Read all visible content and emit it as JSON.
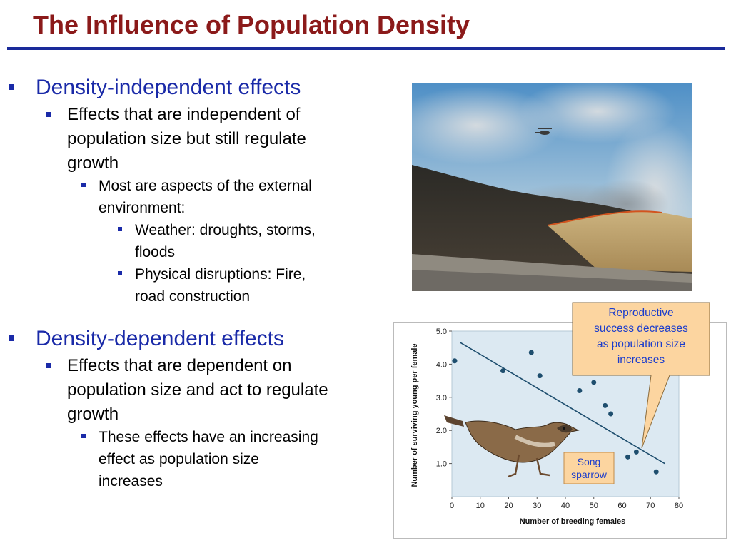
{
  "slide": {
    "title": "The Influence of Population Density"
  },
  "bullets": {
    "independent": {
      "heading": "Density-independent effects",
      "sub_line1": "Effects that are independent of",
      "sub_line2": "population size but still regulate",
      "sub_line3": "growth",
      "env_line1": "Most are aspects of the external",
      "env_line2": "environment:",
      "weather_line1": "Weather: droughts, storms,",
      "weather_line2": "floods",
      "physical_line1": "Physical disruptions: Fire,",
      "physical_line2": "road construction"
    },
    "dependent": {
      "heading": "Density-dependent effects",
      "sub_line1": "Effects that are dependent on",
      "sub_line2": "population size and act to regulate",
      "sub_line3": "growth",
      "inc_line1": "These effects have an increasing",
      "inc_line2": "effect as population size",
      "inc_line3": "increases"
    }
  },
  "photo": {
    "subject": "hillside-wildfire-with-helicopter"
  },
  "callouts": {
    "repro_line1": "Reproductive",
    "repro_line2": "success decreases",
    "repro_line3": "as population size",
    "repro_line4": "increases",
    "song_line1": "Song",
    "song_line2": "sparrow"
  },
  "chart_data": {
    "type": "scatter",
    "xlabel": "Number of breeding females",
    "ylabel": "Number of surviving young per female",
    "xlim": [
      0,
      80
    ],
    "ylim": [
      0,
      5
    ],
    "x_ticks": [
      "0",
      "10",
      "20",
      "30",
      "40",
      "50",
      "60",
      "70",
      "80"
    ],
    "y_ticks": [
      "1.0",
      "2.0",
      "3.0",
      "4.0",
      "5.0"
    ],
    "points": [
      {
        "x": 1,
        "y": 4.1
      },
      {
        "x": 18,
        "y": 3.8
      },
      {
        "x": 28,
        "y": 4.35
      },
      {
        "x": 31,
        "y": 3.65
      },
      {
        "x": 45,
        "y": 3.2
      },
      {
        "x": 50,
        "y": 3.45
      },
      {
        "x": 54,
        "y": 2.75
      },
      {
        "x": 56,
        "y": 2.5
      },
      {
        "x": 62,
        "y": 1.2
      },
      {
        "x": 65,
        "y": 1.35
      },
      {
        "x": 72,
        "y": 0.75
      }
    ],
    "trend": [
      {
        "x": 3,
        "y": 4.65
      },
      {
        "x": 75,
        "y": 1.0
      }
    ],
    "grid": false,
    "colors": {
      "background": "#dce9f2",
      "points": "#1e4e6e",
      "trend": "#1e4e6e"
    }
  },
  "colors": {
    "title": "#8b1a1a",
    "rule": "#1a2a9a",
    "level1_text": "#1a2aa8",
    "bullet": "#1a2aa8",
    "callout_fill": "#fcd5a0",
    "callout_text": "#1a3ccc"
  }
}
